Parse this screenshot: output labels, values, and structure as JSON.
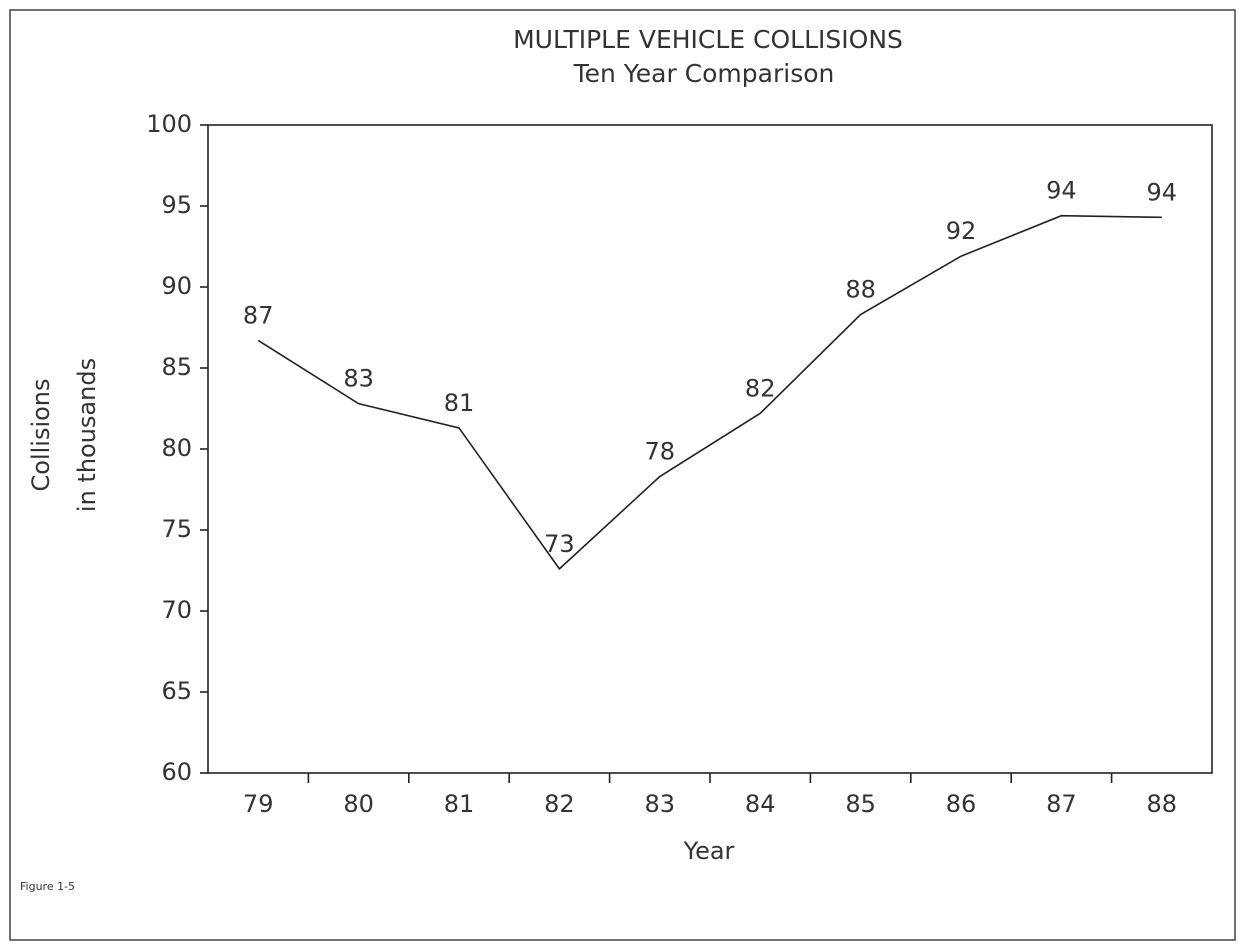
{
  "chart_data": {
    "type": "line",
    "title": "MULTIPLE VEHICLE COLLISIONS",
    "subtitle": "Ten Year Comparison",
    "y_label": [
      "Collisions",
      "in thousands"
    ],
    "x_label": "Year",
    "footnote": "Figure 1-5",
    "categories": [
      "79",
      "80",
      "81",
      "82",
      "83",
      "84",
      "85",
      "86",
      "87",
      "88"
    ],
    "values": [
      86.7,
      82.8,
      81.3,
      72.6,
      78.3,
      82.2,
      88.3,
      91.9,
      94.4,
      94.3
    ],
    "value_labels": [
      "87",
      "83",
      "81",
      "73",
      "78",
      "82",
      "88",
      "92",
      "94",
      "94"
    ],
    "color": "#222222",
    "ylim": [
      60,
      100
    ],
    "yticks": [
      60,
      65,
      70,
      75,
      80,
      85,
      90,
      95,
      100
    ]
  }
}
